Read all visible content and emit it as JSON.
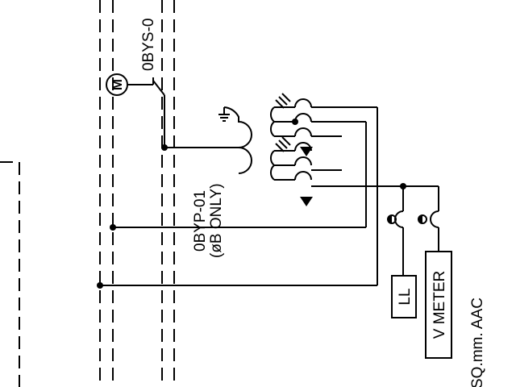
{
  "labels": {
    "switch_tag": "0BYS-0",
    "motor_symbol": "M",
    "pt_tag": "0BYP-01",
    "pt_note": "(øB ONLY)",
    "lamp_box": "LL",
    "meter_box": "V METER",
    "cable_note": "SQ.mm.  AAC"
  },
  "colors": {
    "line": "#000000",
    "background": "#ffffff"
  }
}
